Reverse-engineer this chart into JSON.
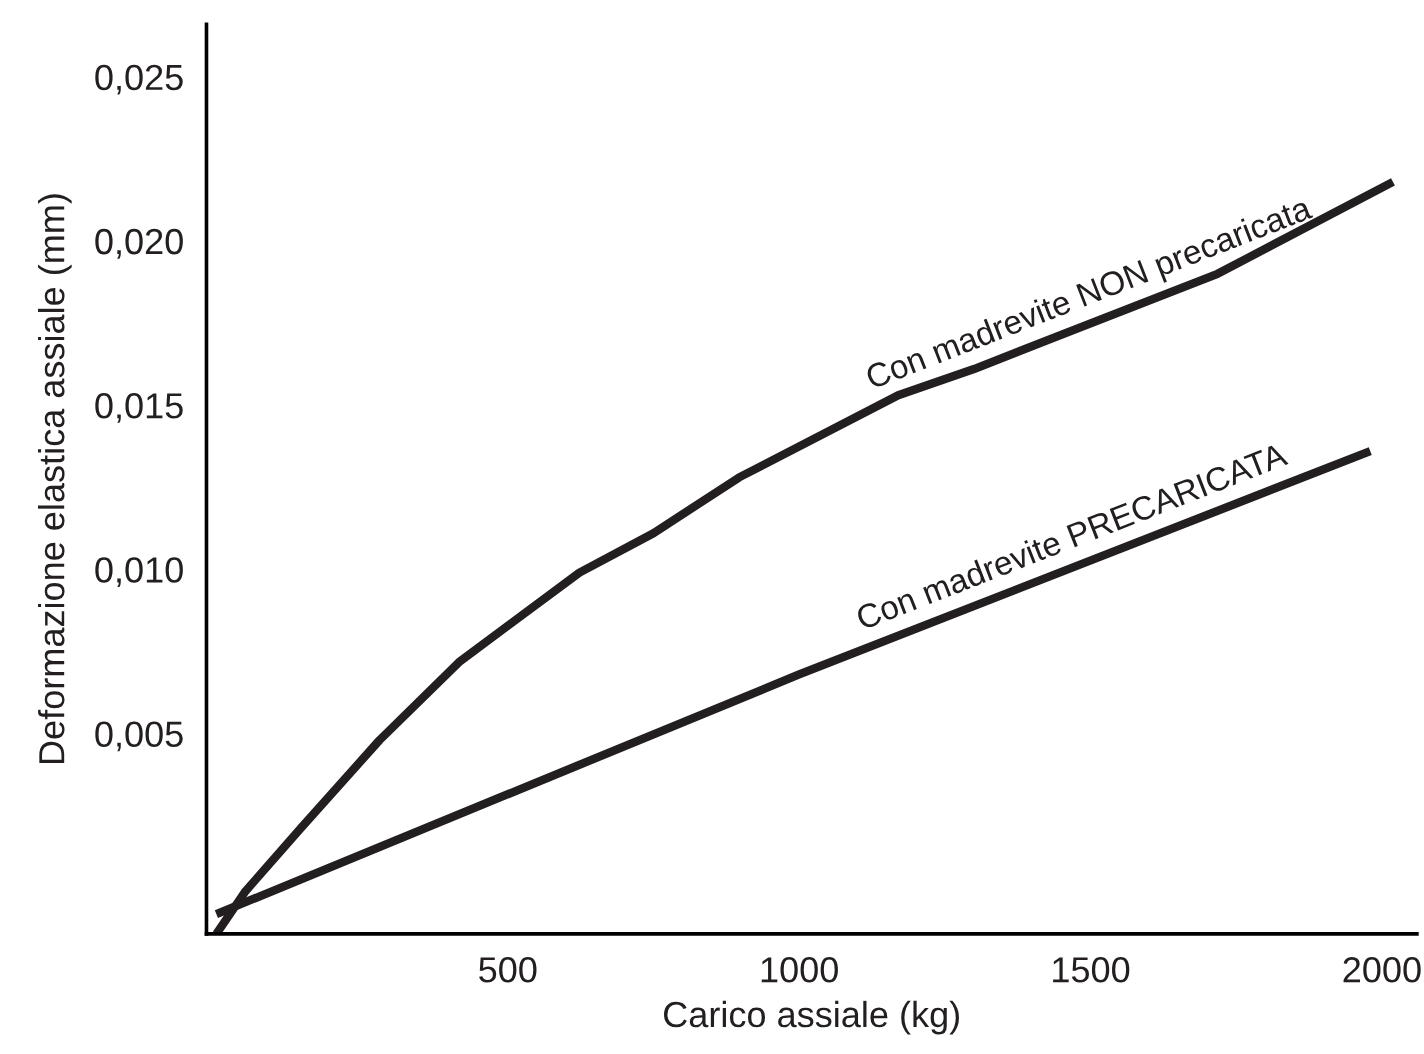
{
  "chart_data": {
    "type": "line",
    "xlabel": "Carico assiale (kg)",
    "ylabel": "Deformazione elastica assiale (mm)",
    "xlim": [
      -17,
      2060
    ],
    "ylim": [
      -0.0011,
      0.0266
    ],
    "xticks": [
      500,
      1000,
      1500,
      2000
    ],
    "yticks": [
      {
        "value": 0.005,
        "label": "0,005"
      },
      {
        "value": 0.01,
        "label": "0,010"
      },
      {
        "value": 0.015,
        "label": "0,015"
      },
      {
        "value": 0.02,
        "label": "0,020"
      },
      {
        "value": 0.025,
        "label": "0,025"
      }
    ],
    "grid": false,
    "legend": false,
    "marker": "none",
    "line_style": "solid",
    "series": [
      {
        "name": "Con madrevite NON precaricata",
        "color": "#231f20",
        "x": [
          0,
          50,
          144,
          280,
          418,
          623,
          750,
          897,
          1170,
          1300,
          1444,
          1718,
          2019
        ],
        "values": [
          -0.0011,
          0.0002,
          0.0021,
          0.0048,
          0.0072,
          0.0099,
          0.0111,
          0.0128,
          0.0153,
          0.0161,
          0.0171,
          0.019,
          0.0218
        ]
      },
      {
        "name": "Con madrevite PRECARICATA",
        "color": "#231f20",
        "x": [
          0,
          1000,
          1980
        ],
        "values": [
          -0.0005,
          0.0068,
          0.0136
        ]
      }
    ]
  }
}
